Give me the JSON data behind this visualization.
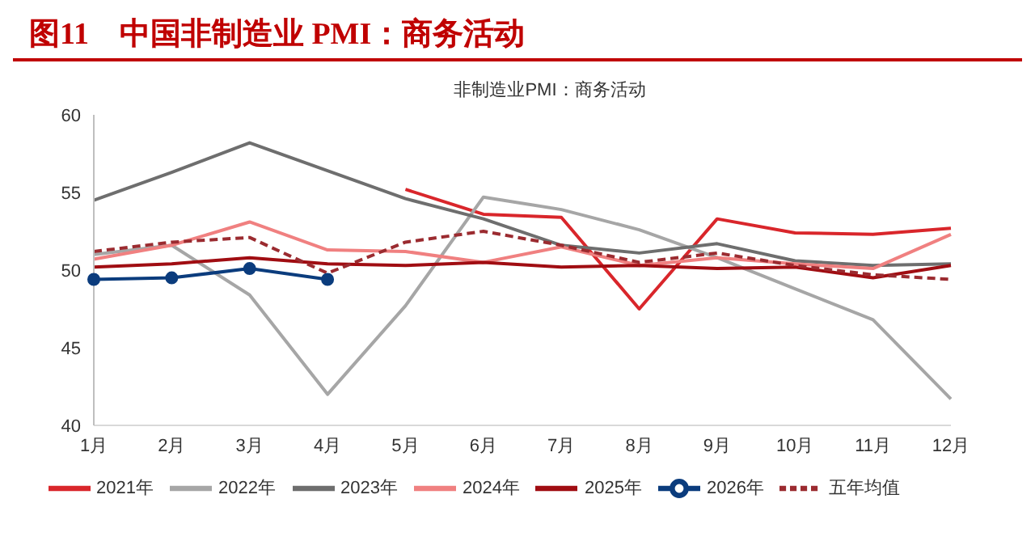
{
  "chart_data": {
    "type": "line",
    "title": "图11　中国非制造业 PMI：商务活动",
    "subtitle": "非制造业PMI：商务活动",
    "categories": [
      "1月",
      "2月",
      "3月",
      "4月",
      "5月",
      "6月",
      "7月",
      "8月",
      "9月",
      "10月",
      "11月",
      "12月"
    ],
    "series": [
      {
        "name": "2021年",
        "color": "#d9262b",
        "values": [
          null,
          null,
          null,
          null,
          55.2,
          53.6,
          53.4,
          47.5,
          53.3,
          52.4,
          52.3,
          52.7
        ]
      },
      {
        "name": "2022年",
        "color": "#a6a6a6",
        "values": [
          51.0,
          51.6,
          48.4,
          42.0,
          47.7,
          54.7,
          53.9,
          52.6,
          50.8,
          48.8,
          46.8,
          41.7
        ]
      },
      {
        "name": "2023年",
        "color": "#6e6e6e",
        "values": [
          54.5,
          56.3,
          58.2,
          56.4,
          54.6,
          53.3,
          51.6,
          51.1,
          51.7,
          50.6,
          50.3,
          50.4
        ]
      },
      {
        "name": "2024年",
        "color": "#f08080",
        "values": [
          50.7,
          51.6,
          53.1,
          51.3,
          51.2,
          50.5,
          51.5,
          50.3,
          50.8,
          50.4,
          50.1,
          52.3
        ]
      },
      {
        "name": "2025年",
        "color": "#a00d12",
        "values": [
          50.2,
          50.4,
          50.8,
          50.4,
          50.3,
          50.5,
          50.2,
          50.3,
          50.1,
          50.2,
          49.5,
          50.3
        ]
      },
      {
        "name": "2026年",
        "color": "#0b3c7d",
        "marker": "circle",
        "values": [
          49.4,
          49.5,
          50.1,
          49.4,
          null,
          null,
          null,
          null,
          null,
          null,
          null,
          null
        ]
      },
      {
        "name": "五年均值",
        "color": "#9b2b30",
        "line_style": "dashed",
        "values": [
          51.2,
          51.8,
          52.1,
          49.8,
          51.8,
          52.5,
          51.6,
          50.5,
          51.1,
          50.3,
          49.7,
          49.4
        ]
      }
    ],
    "ylim": [
      40,
      60
    ],
    "yticks": [
      40,
      45,
      50,
      55,
      60
    ],
    "grid": false,
    "legend": "bottom"
  }
}
